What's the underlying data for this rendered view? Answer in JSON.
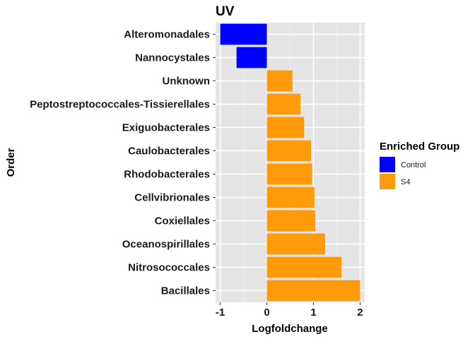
{
  "chart_data": {
    "type": "bar",
    "orientation": "horizontal",
    "title": "UV",
    "xlabel": "Logfoldchange",
    "ylabel": "Order",
    "xlim": [
      -1.1,
      2.1
    ],
    "xticks": [
      -1,
      0,
      1,
      2
    ],
    "xtick_labels": [
      "-1",
      "0",
      "1",
      "2"
    ],
    "grid": true,
    "legend_position": "right",
    "legend_title": "Enriched Group",
    "groups": [
      {
        "name": "Control",
        "color": "#0000ff"
      },
      {
        "name": "S4",
        "color": "#ff9a0a"
      }
    ],
    "categories": [
      "Alteromonadales",
      "Nannocystales",
      "Unknown",
      "Peptostreptococcales-Tissierellales",
      "Exiguobacterales",
      "Caulobacterales",
      "Rhodobacterales",
      "Cellvibrionales",
      "Coxiellales",
      "Oceanospirillales",
      "Nitrosococcales",
      "Bacillales"
    ],
    "values": [
      -1.0,
      -0.65,
      0.55,
      0.72,
      0.8,
      0.95,
      0.97,
      1.02,
      1.04,
      1.25,
      1.6,
      2.0
    ],
    "group_of": [
      "Control",
      "Control",
      "S4",
      "S4",
      "S4",
      "S4",
      "S4",
      "S4",
      "S4",
      "S4",
      "S4",
      "S4"
    ]
  }
}
